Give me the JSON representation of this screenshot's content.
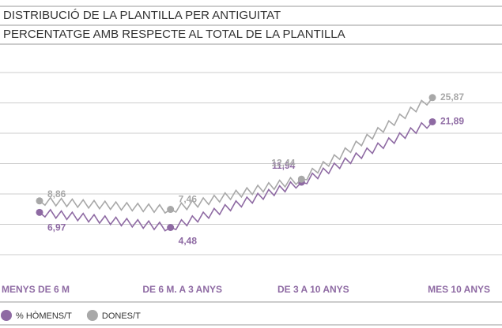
{
  "chart_data": {
    "type": "line",
    "title": "DISTRIBUCIÓ DE LA PLANTILLA PER ANTIGUITAT",
    "subtitle": "PERCENTATGE AMB RESPECTE AL TOTAL DE LA PLANTILLA",
    "categories": [
      "MENYS DE 6 M",
      "DE 6 M. A 3 ANYS",
      "DE 3 A 10 ANYS",
      "MES 10 ANYS"
    ],
    "series": [
      {
        "name": "% HÒMENS/T",
        "color": "#8e6aa3",
        "values": [
          6.97,
          4.48,
          11.94,
          21.89
        ],
        "value_labels": [
          "6,97",
          "4,48",
          "11,94",
          "21,89"
        ]
      },
      {
        "name": "DONES/T",
        "color": "#a8a8a8",
        "values": [
          8.86,
          7.46,
          12.44,
          25.87
        ],
        "value_labels": [
          "8,86",
          "7,46",
          "12,44",
          "25,87"
        ]
      }
    ],
    "ylim": [
      0,
      30
    ],
    "yticks": [
      0,
      5,
      10,
      15,
      20,
      25,
      30
    ],
    "grid": true,
    "legend": "bottom"
  }
}
